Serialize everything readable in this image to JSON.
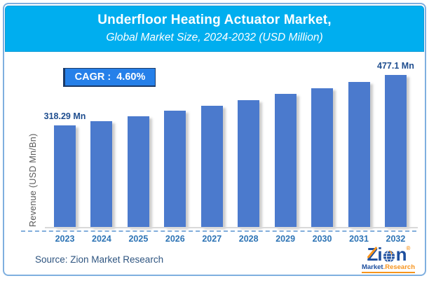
{
  "header": {
    "title": "Underfloor Heating Actuator Market,",
    "subtitle": "Global Market Size, 2024-2032 (USD Million)"
  },
  "cagr": {
    "label": "CAGR :  4.60%"
  },
  "chart_data": {
    "type": "bar",
    "title": "Underfloor Heating Actuator Market, Global Market Size, 2024-2032 (USD Million)",
    "categories": [
      "2023",
      "2024",
      "2025",
      "2026",
      "2027",
      "2028",
      "2029",
      "2030",
      "2031",
      "2032"
    ],
    "values": [
      318.29,
      332.93,
      348.25,
      364.27,
      381.02,
      398.55,
      416.88,
      436.06,
      456.12,
      477.1
    ],
    "value_labels": [
      "318.29 Mn",
      "",
      "",
      "",
      "",
      "",
      "",
      "",
      "",
      "477.1 Mn"
    ],
    "xlabel": "",
    "ylabel": "Revenue (USD Mn/Bn)",
    "ylim": [
      0,
      500
    ],
    "grid": false,
    "legend": "none",
    "cagr_percent": 4.6,
    "bar_color": "#4B7ACD"
  },
  "footer": {
    "source": "Source: Zion Market Research"
  },
  "logo": {
    "z": "Z",
    "i": "i",
    "n": "n",
    "registered": "®",
    "market": "Market",
    "dot": ".",
    "research": "Research"
  },
  "colors": {
    "header_bg": "#00AEEF",
    "cagr_bg": "#2680E9",
    "cagr_border": "#1B3A67",
    "frame_border": "#7FAFDF",
    "bar": "#4B7ACD",
    "axis_line": "#D9D9D9",
    "dashed_line": "#82AEDC",
    "year_label": "#2E74B5",
    "value_label": "#1F4E8F",
    "ylabel": "#595959",
    "source_text": "#2F5580",
    "logo_blue": "#1C4E9E",
    "logo_orange": "#F7941D"
  }
}
